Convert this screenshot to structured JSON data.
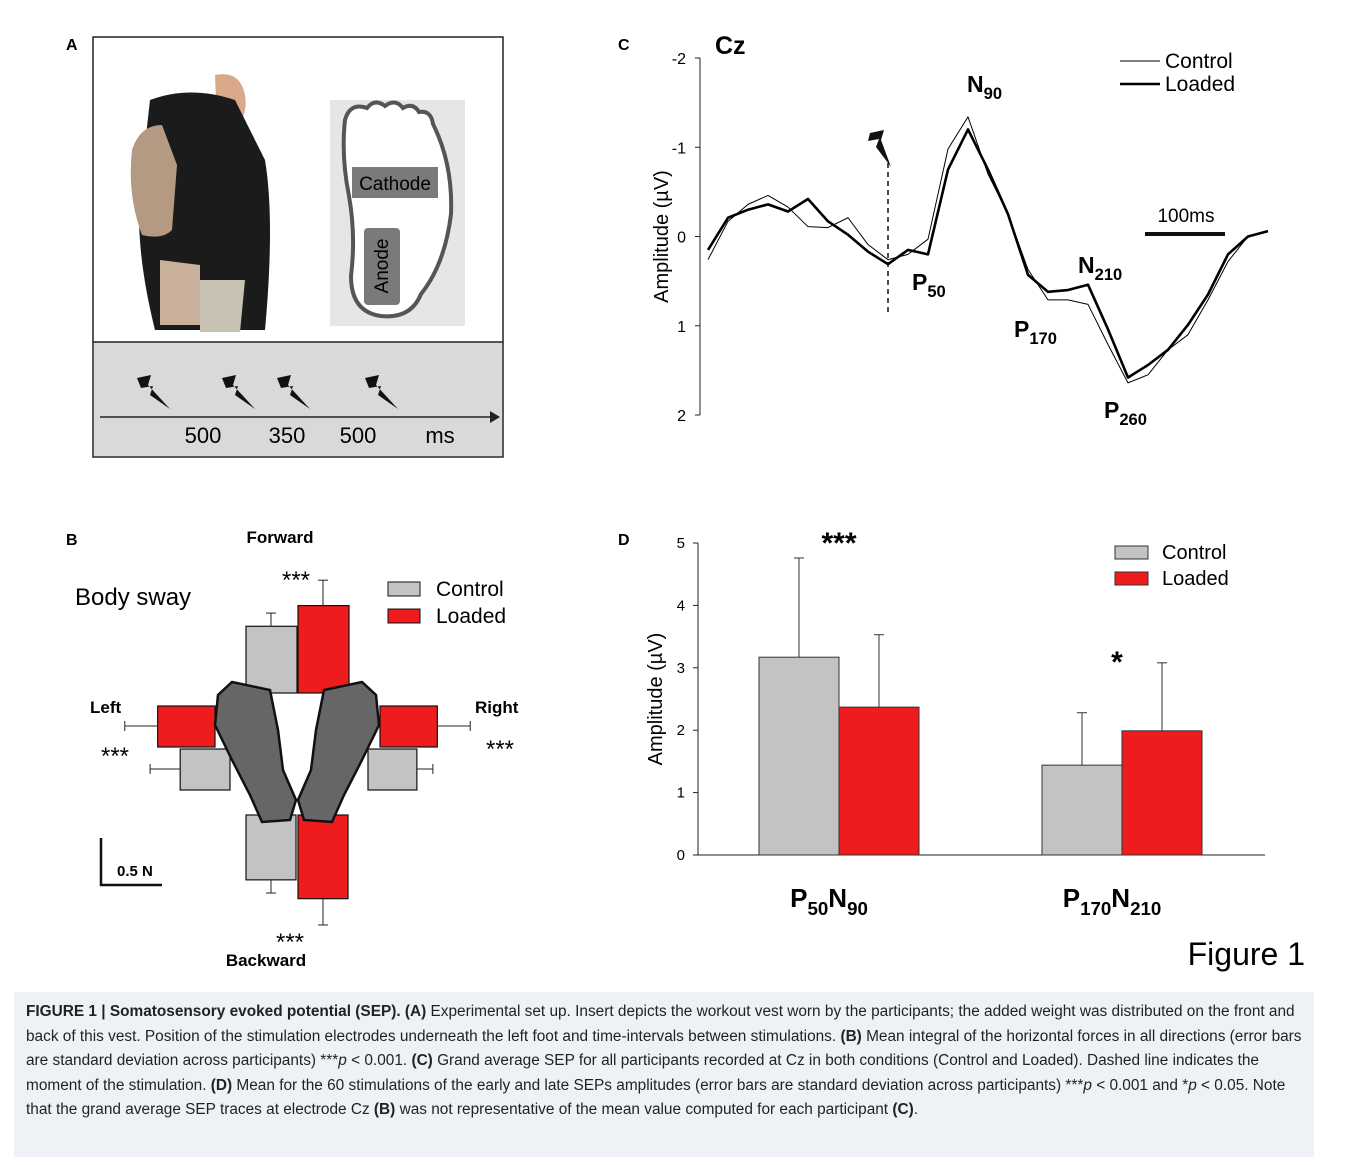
{
  "panel_a": {
    "panel": "A",
    "electrodes": [
      "Cathode",
      "Anode"
    ],
    "intervals": [
      "500",
      "350",
      "500"
    ],
    "unit": "ms"
  },
  "chart_data": [
    {
      "type": "sway",
      "panel": "B",
      "title": "Body sway",
      "categories": [
        "Forward",
        "Backward",
        "Left",
        "Right"
      ],
      "series": [
        {
          "name": "Control",
          "color": "#c3c3c3",
          "values": [
            0.71,
            0.69,
            0.53,
            0.52
          ],
          "errors": [
            0.14,
            0.14,
            0.32,
            0.17
          ]
        },
        {
          "name": "Loaded",
          "color": "#ee1c1c",
          "values": [
            0.93,
            0.89,
            0.61,
            0.61
          ],
          "errors": [
            0.27,
            0.28,
            0.35,
            0.35
          ]
        }
      ],
      "annotations": [
        "***",
        "***",
        "***",
        "***"
      ],
      "scale_bar": {
        "value": 0.5,
        "label": "0.5 N"
      }
    },
    {
      "type": "line",
      "panel": "C",
      "title": "Cz",
      "ylabel": "Amplitude (µV)",
      "x": [
        -225,
        -200,
        -175,
        -150,
        -125,
        -100,
        -75,
        -50,
        -25,
        0,
        25,
        50,
        75,
        100,
        125,
        150,
        175,
        200,
        225,
        250,
        275,
        300,
        325,
        350,
        375,
        400,
        425,
        450,
        475
      ],
      "xlim": [
        -235,
        475
      ],
      "ylim": [
        2,
        -2
      ],
      "yticks": [
        -2,
        -1,
        0,
        1,
        2
      ],
      "series": [
        {
          "name": "Control",
          "color": "#000000",
          "width": 1,
          "values": [
            0.26,
            -0.17,
            -0.36,
            -0.46,
            -0.33,
            -0.11,
            -0.1,
            -0.21,
            0.09,
            0.26,
            0.2,
            0.03,
            -0.98,
            -1.34,
            -0.7,
            -0.25,
            0.37,
            0.71,
            0.71,
            0.76,
            1.21,
            1.64,
            1.55,
            1.27,
            1.1,
            0.71,
            0.28,
            0,
            -0.06
          ]
        },
        {
          "name": "Loaded",
          "color": "#000000",
          "width": 2.6,
          "values": [
            0.15,
            -0.21,
            -0.3,
            -0.36,
            -0.28,
            -0.42,
            -0.17,
            -0.02,
            0.17,
            0.31,
            0.15,
            0.2,
            -0.75,
            -1.2,
            -0.75,
            -0.25,
            0.43,
            0.62,
            0.6,
            0.54,
            1.04,
            1.58,
            1.44,
            1.27,
            0.99,
            0.65,
            0.2,
            0,
            -0.06
          ]
        }
      ],
      "stimulus": 0,
      "peaks": [
        [
          "N",
          "90"
        ],
        [
          "P",
          "50"
        ],
        [
          "P",
          "170"
        ],
        [
          "N",
          "210"
        ],
        [
          "P",
          "260"
        ]
      ],
      "scale_bar": {
        "value": 100,
        "label": "100ms"
      }
    },
    {
      "type": "bar",
      "panel": "D",
      "ylabel": "Amplitude (µV)",
      "categories": [
        [
          "P",
          "50",
          "N",
          "90"
        ],
        [
          "P",
          "170",
          "N",
          "210"
        ]
      ],
      "ylim": [
        0,
        5
      ],
      "yticks": [
        0,
        1,
        2,
        3,
        4,
        5
      ],
      "series": [
        {
          "name": "Control",
          "color": "#c3c3c3",
          "values": [
            3.17,
            1.44
          ],
          "errors": [
            1.59,
            0.84
          ]
        },
        {
          "name": "Loaded",
          "color": "#ee1c1c",
          "values": [
            2.37,
            1.99
          ],
          "errors": [
            1.16,
            1.09
          ]
        }
      ],
      "annotations": [
        "***",
        "*"
      ]
    }
  ],
  "figure_label": "Figure 1",
  "caption": [
    {
      "text": "FIGURE 1 | Somatosensory evoked potential (SEP). (A)",
      "style": "bold"
    },
    {
      "text": " Experimental set up. Insert depicts the workout vest worn by the participants; the added weight was distributed on the front and back of this vest. Position of the stimulation electrodes underneath the left foot and time-intervals between stimulations. ",
      "style": "plain"
    },
    {
      "text": "(B)",
      "style": "bold"
    },
    {
      "text": " Mean integral of the horizontal forces in all directions (error bars are standard deviation across participants) ***",
      "style": "plain"
    },
    {
      "text": "p",
      "style": "italic"
    },
    {
      "text": " < 0.001. ",
      "style": "plain"
    },
    {
      "text": "(C)",
      "style": "bold"
    },
    {
      "text": " Grand average SEP for all participants recorded at Cz in both conditions (Control and Loaded). Dashed line indicates the moment of the stimulation. ",
      "style": "plain"
    },
    {
      "text": "(D)",
      "style": "bold"
    },
    {
      "text": " Mean for the 60 stimulations of the early and late SEPs amplitudes (error bars are standard deviation across participants) ***",
      "style": "plain"
    },
    {
      "text": "p",
      "style": "italic"
    },
    {
      "text": " < 0.001 and *",
      "style": "plain"
    },
    {
      "text": "p",
      "style": "italic"
    },
    {
      "text": " < 0.05. Note that the grand average SEP traces at electrode Cz ",
      "style": "plain"
    },
    {
      "text": "(B)",
      "style": "bold"
    },
    {
      "text": " was not representative of the mean value computed for each participant ",
      "style": "plain"
    },
    {
      "text": "(C)",
      "style": "bold"
    },
    {
      "text": ".",
      "style": "plain"
    }
  ]
}
